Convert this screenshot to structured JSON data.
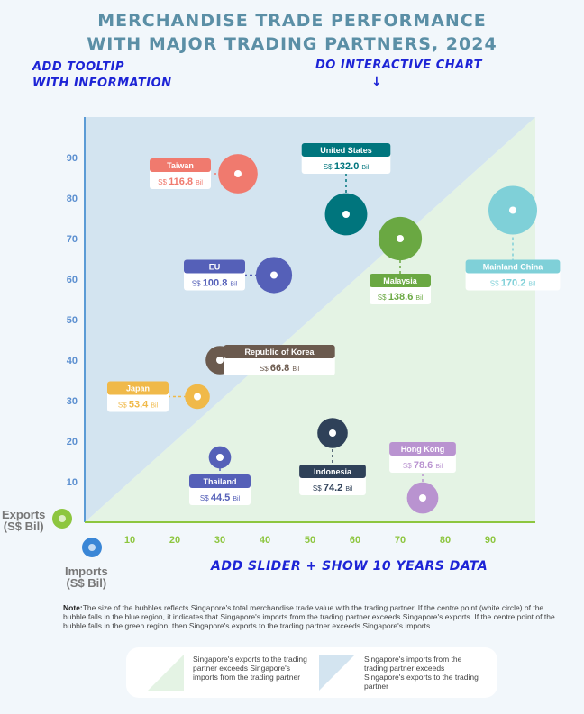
{
  "title_line1": "MERCHANDISE TRADE PERFORMANCE",
  "title_line2": "WITH MAJOR TRADING PARTNERS, 2024",
  "annotations": {
    "tooltip_line1": "ADD TOOLTIP",
    "tooltip_line2": "WITH INFORMATION",
    "interactive": "DO INTERACTIVE CHART",
    "arrow": "↓",
    "slider": "ADD SLIDER + SHOW 10 YEARS DATA"
  },
  "axes": {
    "exports_label": "Exports",
    "exports_unit": "(S$ Bil)",
    "imports_label": "Imports",
    "imports_unit": "(S$ Bil)"
  },
  "note_label": "Note:",
  "note_text": "The size of the bubbles reflects Singapore's total merchandise trade value with the trading partner. If the centre point (white circle) of the bubble falls in the blue region, it indicates that Singapore's imports from the trading partner exceeds Singapore's exports. If the centre point of the bubble falls in the green region, then Singapore's exports to the trading partner exceeds Singapore's imports.",
  "legend": {
    "green_text": "Singapore's exports to the trading partner exceeds Singapore's imports from the trading partner",
    "blue_text": "Singapore's imports from the trading partner exceeds Singapore's exports to the trading partner"
  },
  "colors": {
    "blue_region": "#d3e4f0",
    "green_region": "#e4f3e4",
    "axis": "#5b9bd5",
    "tick": "#8dc63f"
  },
  "chart_data": {
    "type": "scatter",
    "subtype": "bubble",
    "x_label": "Imports (S$ Bil)",
    "y_label": "Exports (S$ Bil)",
    "xlim": [
      0,
      100
    ],
    "ylim": [
      0,
      100
    ],
    "x_ticks": [
      10,
      20,
      30,
      40,
      50,
      60,
      70,
      80,
      90
    ],
    "y_ticks": [
      10,
      20,
      30,
      40,
      50,
      60,
      70,
      80,
      90
    ],
    "currency": "S$",
    "unit": "Bil",
    "points": [
      {
        "name": "Taiwan",
        "x": 34,
        "y": 86,
        "total": 116.8,
        "color": "#f07a6e"
      },
      {
        "name": "United States",
        "x": 58,
        "y": 76,
        "total": 132.0,
        "color": "#00757d"
      },
      {
        "name": "Mainland China",
        "x": 95,
        "y": 77,
        "total": 170.2,
        "color": "#7fd0d8"
      },
      {
        "name": "Malaysia",
        "x": 70,
        "y": 70,
        "total": 138.6,
        "color": "#6aa842"
      },
      {
        "name": "EU",
        "x": 42,
        "y": 61,
        "total": 100.8,
        "color": "#5560b8"
      },
      {
        "name": "Republic of Korea",
        "x": 30,
        "y": 40,
        "total": 66.8,
        "color": "#6b5a4e"
      },
      {
        "name": "Japan",
        "x": 25,
        "y": 31,
        "total": 53.4,
        "color": "#f0b949"
      },
      {
        "name": "Indonesia",
        "x": 55,
        "y": 22,
        "total": 74.2,
        "color": "#2f4159"
      },
      {
        "name": "Thailand",
        "x": 30,
        "y": 16,
        "total": 44.5,
        "color": "#5560b8"
      },
      {
        "name": "Hong Kong",
        "x": 75,
        "y": 6,
        "total": 78.6,
        "color": "#b993d0"
      }
    ]
  }
}
